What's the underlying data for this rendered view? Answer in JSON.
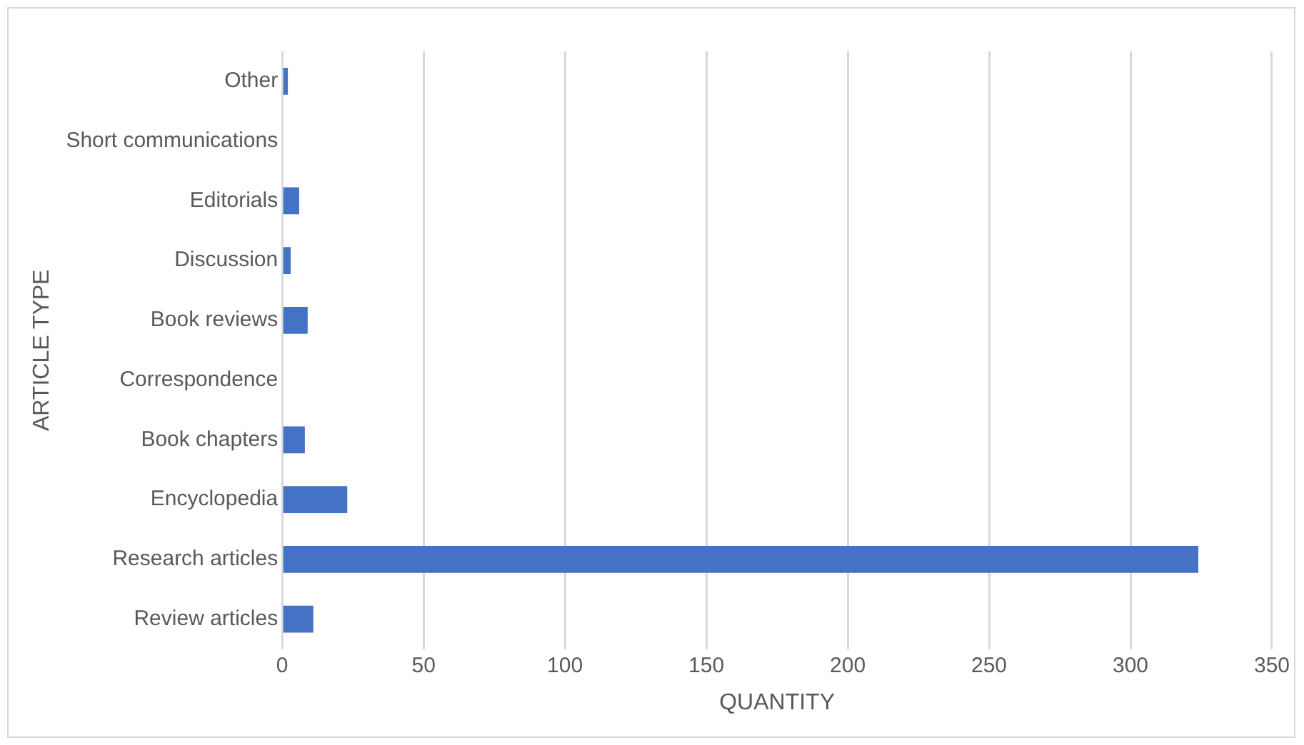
{
  "chart_data": {
    "type": "bar",
    "orientation": "horizontal",
    "xlabel": "QUANTITY",
    "ylabel": "ARTICLE TYPE",
    "categories": [
      "Other",
      "Short communications",
      "Editorials",
      "Discussion",
      "Book reviews",
      "Correspondence",
      "Book chapters",
      "Encyclopedia",
      "Research articles",
      "Review articles"
    ],
    "values": [
      2,
      0,
      6,
      3,
      9,
      0,
      8,
      23,
      324,
      11
    ],
    "color": "#4472c4",
    "xlim": [
      0,
      350
    ],
    "xticks": [
      0,
      50,
      100,
      150,
      200,
      250,
      300,
      350
    ],
    "grid": "x",
    "legend": false
  }
}
